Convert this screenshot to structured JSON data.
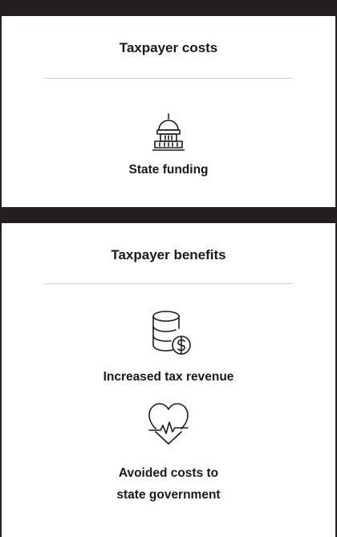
{
  "sections": [
    {
      "title": "Taxpayer costs",
      "items": [
        {
          "label": "State funding"
        }
      ]
    },
    {
      "title": "Taxpayer benefits",
      "items": [
        {
          "label": "Increased tax revenue"
        },
        {
          "label": "Avoided costs to\nstate government"
        }
      ]
    }
  ]
}
